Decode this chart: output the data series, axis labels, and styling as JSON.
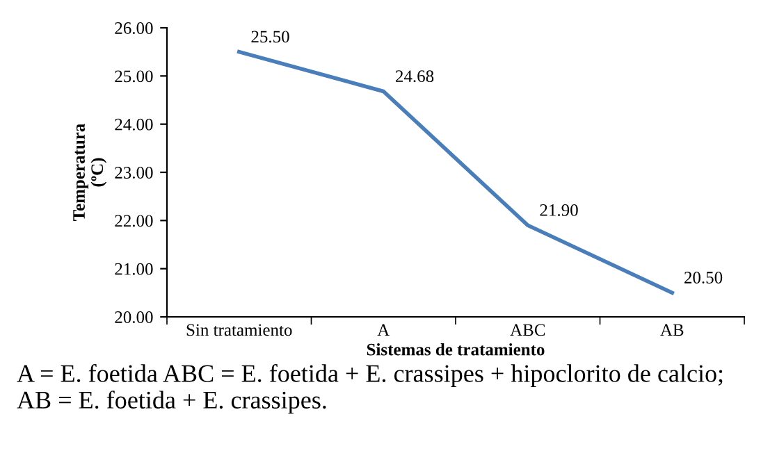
{
  "chart_data": {
    "type": "line",
    "categories": [
      "Sin tratamiento",
      "A",
      "ABC",
      "AB"
    ],
    "series": [
      {
        "color": "#4a7ebb",
        "values": [
          25.5,
          24.68,
          21.9,
          20.5
        ]
      }
    ],
    "value_labels": [
      "25.50",
      "24.68",
      "21.90",
      "20.50"
    ],
    "ylabel": "Temperatura\n(ºC)",
    "xlabel": "Sistemas de tratamiento",
    "ylim": [
      20,
      26
    ],
    "yticks": [
      {
        "value": 20,
        "label": "20.00"
      },
      {
        "value": 21,
        "label": "21.00"
      },
      {
        "value": 22,
        "label": "22.00"
      },
      {
        "value": 23,
        "label": "23.00"
      },
      {
        "value": 24,
        "label": "24.00"
      },
      {
        "value": 25,
        "label": "25.00"
      },
      {
        "value": 26,
        "label": "26.00"
      }
    ],
    "grid": false,
    "legend": false,
    "marker": "none",
    "line_style": "solid",
    "annotations": [
      "A = E. foetida ABC = E. foetida + E. crassipes + hipoclorito de calcio; AB = E. foetida + E. crassipes."
    ]
  }
}
